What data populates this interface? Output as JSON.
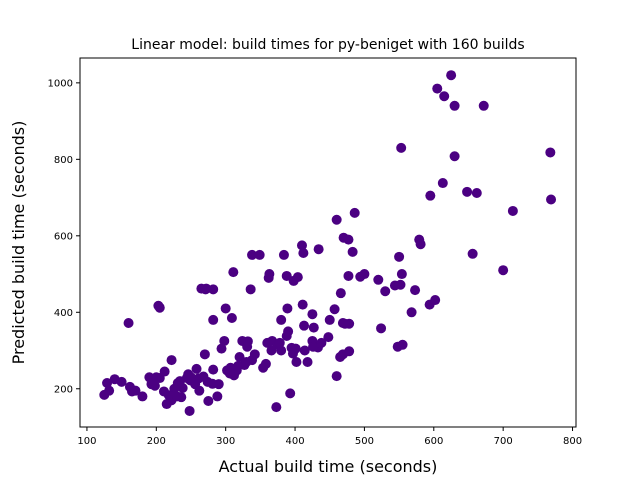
{
  "chart_data": {
    "type": "scatter",
    "title": "Linear model: build times for py-beniget with 160 builds",
    "xlabel": "Actual build time (seconds)",
    "ylabel": "Predicted build time (seconds)",
    "xlim": [
      90,
      805
    ],
    "ylim": [
      100,
      1065
    ],
    "xticks": [
      100,
      200,
      300,
      400,
      500,
      600,
      700,
      800
    ],
    "yticks": [
      200,
      400,
      600,
      800,
      1000
    ],
    "marker_color": "#4b0082",
    "grid": false,
    "x": [
      625,
      605,
      615,
      630,
      672,
      553,
      768,
      630,
      769,
      613,
      648,
      662,
      595,
      714,
      486,
      579,
      460,
      581,
      470,
      477,
      656,
      550,
      434,
      410,
      483,
      412,
      700,
      554,
      594,
      602,
      552,
      573,
      388,
      544,
      466,
      520,
      548,
      338,
      500,
      363,
      524,
      457,
      494,
      404,
      398,
      477,
      530,
      568,
      555,
      300,
      427,
      478,
      411,
      389,
      425,
      450,
      448,
      413,
      349,
      384,
      472,
      425,
      380,
      336,
      362,
      311,
      469,
      160,
      203,
      205,
      282,
      433,
      282,
      272,
      265,
      271,
      309,
      395,
      324,
      331,
      367,
      388,
      380,
      401,
      397,
      360,
      375,
      418,
      469,
      478,
      332,
      465,
      358,
      338,
      327,
      320,
      316,
      312,
      307,
      302,
      298,
      290,
      281,
      274,
      268,
      261,
      256,
      249,
      244,
      238,
      231,
      226,
      218,
      211,
      205,
      198,
      193,
      180,
      170,
      162,
      150,
      140,
      132,
      129,
      125,
      165,
      190,
      200,
      212,
      222,
      234,
      246,
      258,
      270,
      282,
      294,
      306,
      318,
      330,
      342,
      354,
      366,
      378,
      390,
      402,
      414,
      426,
      438,
      250,
      262,
      275,
      288,
      222,
      236,
      248,
      230,
      215,
      373,
      393,
      460
    ],
    "y": [
      1020,
      985,
      965,
      940,
      940,
      830,
      818,
      808,
      695,
      738,
      715,
      712,
      705,
      665,
      660,
      590,
      642,
      578,
      595,
      590,
      553,
      545,
      565,
      575,
      558,
      555,
      510,
      500,
      420,
      432,
      472,
      458,
      495,
      470,
      450,
      485,
      310,
      550,
      500,
      500,
      358,
      408,
      493,
      492,
      482,
      495,
      455,
      400,
      315,
      410,
      360,
      370,
      420,
      410,
      395,
      380,
      335,
      365,
      550,
      550,
      370,
      325,
      380,
      460,
      490,
      505,
      372,
      372,
      417,
      412,
      380,
      308,
      460,
      462,
      462,
      460,
      385,
      307,
      325,
      310,
      325,
      338,
      300,
      305,
      292,
      320,
      315,
      270,
      290,
      298,
      324,
      283,
      265,
      275,
      262,
      283,
      248,
      235,
      255,
      248,
      325,
      212,
      213,
      218,
      232,
      227,
      212,
      222,
      228,
      202,
      215,
      200,
      183,
      193,
      228,
      208,
      212,
      180,
      195,
      205,
      218,
      225,
      195,
      215,
      184,
      193,
      230,
      230,
      245,
      275,
      220,
      238,
      252,
      290,
      250,
      305,
      240,
      260,
      270,
      290,
      255,
      300,
      320,
      350,
      270,
      300,
      310,
      320,
      230,
      195,
      168,
      180,
      170,
      178,
      142,
      180,
      160,
      152,
      188,
      233
    ]
  }
}
